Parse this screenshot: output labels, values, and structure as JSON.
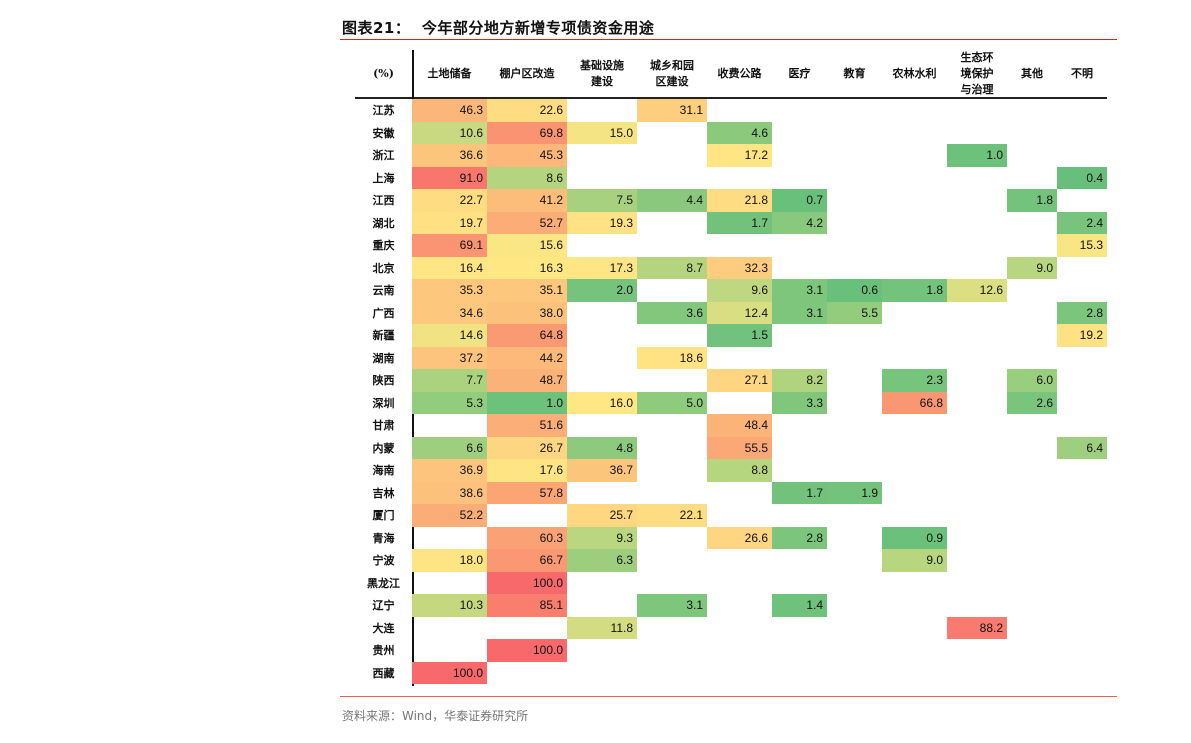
{
  "title": "图表21：  今年部分地方新增专项债资金用途",
  "source": "资料来源：Wind，华泰证券研究所",
  "chart_data": {
    "type": "heatmap",
    "corner_label": "(%)",
    "columns": [
      "土地储备",
      "棚户区改造",
      "基础设施\n建设",
      "城乡和园\n区建设",
      "收费公路",
      "医疗",
      "教育",
      "农林水利",
      "生态环\n境保护\n与治理",
      "其他",
      "不明"
    ],
    "rows": [
      {
        "label": "江苏",
        "values": [
          46.3,
          22.6,
          null,
          31.1,
          null,
          null,
          null,
          null,
          null,
          null,
          null
        ]
      },
      {
        "label": "安徽",
        "values": [
          10.6,
          69.8,
          15.0,
          null,
          4.6,
          null,
          null,
          null,
          null,
          null,
          null
        ]
      },
      {
        "label": "浙江",
        "values": [
          36.6,
          45.3,
          null,
          null,
          17.2,
          null,
          null,
          null,
          1.0,
          null,
          null
        ]
      },
      {
        "label": "上海",
        "values": [
          91.0,
          8.6,
          null,
          null,
          null,
          null,
          null,
          null,
          null,
          null,
          0.4
        ]
      },
      {
        "label": "江西",
        "values": [
          22.7,
          41.2,
          7.5,
          4.4,
          21.8,
          0.7,
          null,
          null,
          null,
          1.8,
          null
        ]
      },
      {
        "label": "湖北",
        "values": [
          19.7,
          52.7,
          19.3,
          null,
          1.7,
          4.2,
          null,
          null,
          null,
          null,
          2.4
        ]
      },
      {
        "label": "重庆",
        "values": [
          69.1,
          15.6,
          null,
          null,
          null,
          null,
          null,
          null,
          null,
          null,
          15.3
        ]
      },
      {
        "label": "北京",
        "values": [
          16.4,
          16.3,
          17.3,
          8.7,
          32.3,
          null,
          null,
          null,
          null,
          9.0,
          null
        ]
      },
      {
        "label": "云南",
        "values": [
          35.3,
          35.1,
          2.0,
          null,
          9.6,
          3.1,
          0.6,
          1.8,
          12.6,
          null,
          null
        ]
      },
      {
        "label": "广西",
        "values": [
          34.6,
          38.0,
          null,
          3.6,
          12.4,
          3.1,
          5.5,
          null,
          null,
          null,
          2.8
        ]
      },
      {
        "label": "新疆",
        "values": [
          14.6,
          64.8,
          null,
          null,
          1.5,
          null,
          null,
          null,
          null,
          null,
          19.2
        ]
      },
      {
        "label": "湖南",
        "values": [
          37.2,
          44.2,
          null,
          18.6,
          null,
          null,
          null,
          null,
          null,
          null,
          null
        ]
      },
      {
        "label": "陕西",
        "values": [
          7.7,
          48.7,
          null,
          null,
          27.1,
          8.2,
          null,
          2.3,
          null,
          6.0,
          null
        ]
      },
      {
        "label": "深圳",
        "values": [
          5.3,
          1.0,
          16.0,
          5.0,
          null,
          3.3,
          null,
          66.8,
          null,
          2.6,
          null
        ]
      },
      {
        "label": "甘肃",
        "values": [
          null,
          51.6,
          null,
          null,
          48.4,
          null,
          null,
          null,
          null,
          null,
          null
        ]
      },
      {
        "label": "内蒙",
        "values": [
          6.6,
          26.7,
          4.8,
          null,
          55.5,
          null,
          null,
          null,
          null,
          null,
          6.4
        ]
      },
      {
        "label": "海南",
        "values": [
          36.9,
          17.6,
          36.7,
          null,
          8.8,
          null,
          null,
          null,
          null,
          null,
          null
        ]
      },
      {
        "label": "吉林",
        "values": [
          38.6,
          57.8,
          null,
          null,
          null,
          1.7,
          1.9,
          null,
          null,
          null,
          null
        ]
      },
      {
        "label": "厦门",
        "values": [
          52.2,
          null,
          25.7,
          22.1,
          null,
          null,
          null,
          null,
          null,
          null,
          null
        ]
      },
      {
        "label": "青海",
        "values": [
          null,
          60.3,
          9.3,
          null,
          26.6,
          2.8,
          null,
          0.9,
          null,
          null,
          null
        ]
      },
      {
        "label": "宁波",
        "values": [
          18.0,
          66.7,
          6.3,
          null,
          null,
          null,
          null,
          9.0,
          null,
          null,
          null
        ]
      },
      {
        "label": "黑龙江",
        "values": [
          null,
          100.0,
          null,
          null,
          null,
          null,
          null,
          null,
          null,
          null,
          null
        ]
      },
      {
        "label": "辽宁",
        "values": [
          10.3,
          85.1,
          null,
          3.1,
          null,
          1.4,
          null,
          null,
          null,
          null,
          null
        ]
      },
      {
        "label": "大连",
        "values": [
          null,
          null,
          11.8,
          null,
          null,
          null,
          null,
          null,
          88.2,
          null,
          null
        ]
      },
      {
        "label": "贵州",
        "values": [
          null,
          100.0,
          null,
          null,
          null,
          null,
          null,
          null,
          null,
          null,
          null
        ]
      },
      {
        "label": "西藏",
        "values": [
          100.0,
          null,
          null,
          null,
          null,
          null,
          null,
          null,
          null,
          null,
          null
        ]
      }
    ],
    "color_scale": {
      "low": "#63BE7B",
      "mid": "#FFEB84",
      "high": "#F8696B"
    }
  }
}
